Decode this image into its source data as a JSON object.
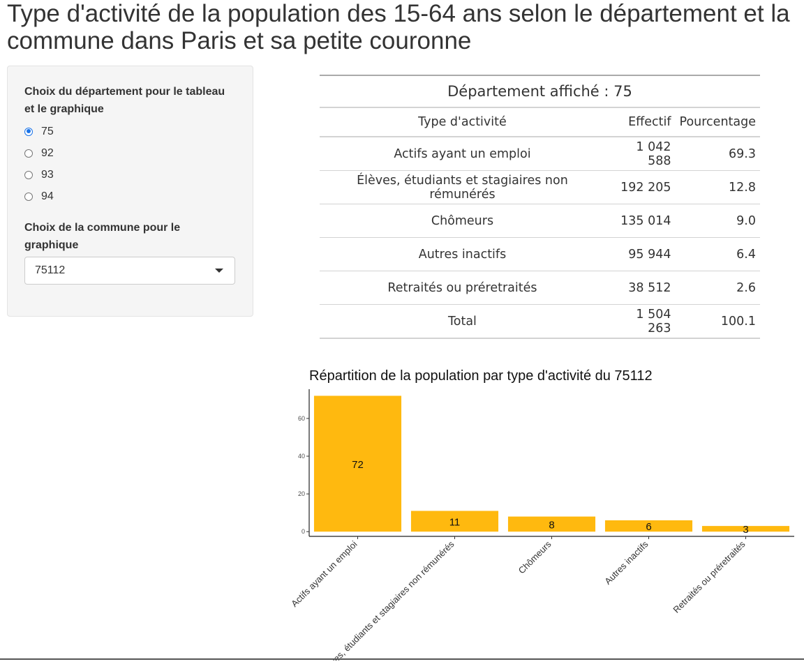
{
  "page": {
    "title": "Type d'activité de la population des 15-64 ans selon le département et la commune dans Paris et sa petite couronne"
  },
  "sidebar": {
    "department_label": "Choix du département pour le tableau et le graphique",
    "department_options": [
      {
        "label": "75",
        "checked": true
      },
      {
        "label": "92",
        "checked": false
      },
      {
        "label": "93",
        "checked": false
      },
      {
        "label": "94",
        "checked": false
      }
    ],
    "commune_label": "Choix de la commune pour le graphique",
    "commune_selected": "75112"
  },
  "table": {
    "caption": "Département affiché : 75",
    "headers": [
      "Type d'activité",
      "Effectif",
      "Pourcentage"
    ],
    "rows": [
      [
        "Actifs ayant un emploi",
        "1 042 588",
        "69.3"
      ],
      [
        "Élèves, étudiants et stagiaires non rémunérés",
        "192 205",
        "12.8"
      ],
      [
        "Chômeurs",
        "135 014",
        "9.0"
      ],
      [
        "Autres inactifs",
        "95 944",
        "6.4"
      ],
      [
        "Retraités ou préretraités",
        "38 512",
        "2.6"
      ],
      [
        "Total",
        "1 504 263",
        "100.1"
      ]
    ]
  },
  "chart_data": {
    "type": "bar",
    "title": "Répartition de la population par type d'activité du 75112",
    "categories": [
      "Actifs ayant un emploi",
      "Élèves, étudiants et stagiaires non rémunérés",
      "Chômeurs",
      "Autres inactifs",
      "Retraités ou préretraités"
    ],
    "values": [
      72,
      11,
      8,
      6,
      3
    ],
    "data_labels": [
      "72",
      "11",
      "8",
      "6",
      "3"
    ],
    "yticks": [
      0,
      20,
      40,
      60
    ],
    "ylim": [
      -2.5,
      75.5
    ],
    "xlabel": "",
    "ylabel": "",
    "grid": false,
    "bar_color": "#ffb90f"
  },
  "colors": {
    "radio_accent": "#1a73e8",
    "sidebar_bg": "#f5f5f5"
  }
}
